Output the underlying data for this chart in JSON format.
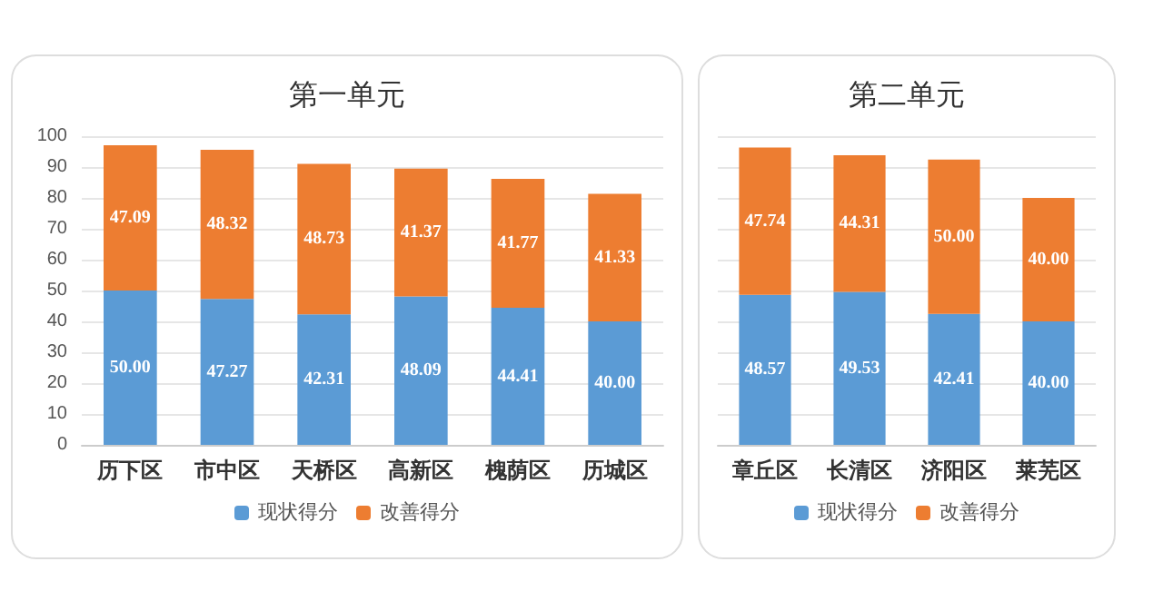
{
  "chart_data": [
    {
      "type": "bar",
      "title": "第一单元",
      "categories": [
        "历下区",
        "市中区",
        "天桥区",
        "高新区",
        "槐荫区",
        "历城区"
      ],
      "stacked": true,
      "grid": "y",
      "legend": "bottom",
      "ylim": [
        0,
        100
      ],
      "yticks": [
        0,
        10,
        20,
        30,
        40,
        50,
        60,
        70,
        80,
        90,
        100
      ],
      "series": [
        {
          "name": "现状得分",
          "color": "#5b9bd5",
          "values": [
            50.0,
            47.27,
            42.31,
            48.09,
            44.41,
            40.0
          ],
          "value_labels": [
            "50.00",
            "47.27",
            "42.31",
            "48.09",
            "44.41",
            "40.00"
          ]
        },
        {
          "name": "改善得分",
          "color": "#ed7d31",
          "values": [
            47.09,
            48.32,
            48.73,
            41.37,
            41.77,
            41.33
          ],
          "value_labels": [
            "47.09",
            "48.32",
            "48.73",
            "41.37",
            "41.77",
            "41.33"
          ]
        }
      ]
    },
    {
      "type": "bar",
      "title": "第二单元",
      "categories": [
        "章丘区",
        "长清区",
        "济阳区",
        "莱芜区"
      ],
      "stacked": true,
      "grid": "y",
      "legend": "bottom",
      "tick_labels": "x",
      "ylim": [
        0,
        100
      ],
      "yticks": [
        0,
        10,
        20,
        30,
        40,
        50,
        60,
        70,
        80,
        90,
        100
      ],
      "series": [
        {
          "name": "现状得分",
          "color": "#5b9bd5",
          "values": [
            48.57,
            49.53,
            42.41,
            40.0
          ],
          "value_labels": [
            "48.57",
            "49.53",
            "42.41",
            "40.00"
          ]
        },
        {
          "name": "改善得分",
          "color": "#ed7d31",
          "values": [
            47.74,
            44.31,
            50.0,
            40.0
          ],
          "value_labels": [
            "47.74",
            "44.31",
            "50.00",
            "40.00"
          ]
        }
      ]
    }
  ]
}
